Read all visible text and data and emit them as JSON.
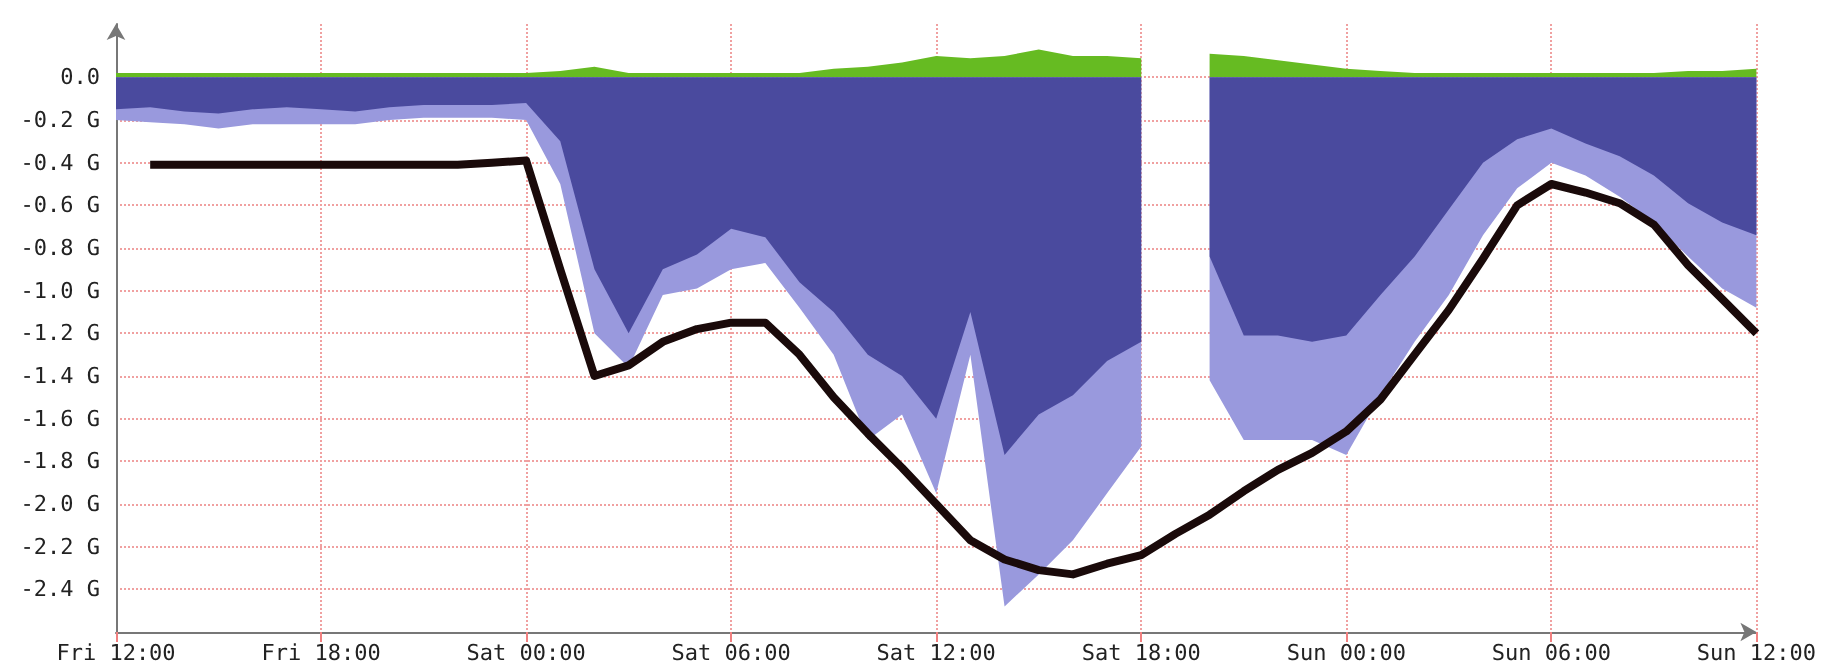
{
  "chart_data": {
    "type": "area",
    "grid": true,
    "marker": "none",
    "categories": [
      "Fri 12:00",
      null,
      null,
      null,
      null,
      null,
      "Fri 18:00",
      null,
      null,
      null,
      null,
      null,
      "Sat 00:00",
      null,
      null,
      null,
      null,
      null,
      "Sat 06:00",
      null,
      null,
      null,
      null,
      null,
      "Sat 12:00",
      null,
      null,
      null,
      null,
      null,
      "Sat 18:00",
      null,
      null,
      null,
      null,
      null,
      "Sun 00:00",
      null,
      null,
      null,
      null,
      null,
      "Sun 06:00",
      null,
      null,
      null,
      null,
      null,
      "Sun 12:00"
    ],
    "ylim": [
      -2.6,
      0.25
    ],
    "yticks": [
      {
        "value": 0,
        "label": "0.0"
      },
      {
        "value": -0.2,
        "label": "-0.2 G"
      },
      {
        "value": -0.4,
        "label": "-0.4 G"
      },
      {
        "value": -0.6,
        "label": "-0.6 G"
      },
      {
        "value": -0.8,
        "label": "-0.8 G"
      },
      {
        "value": -1,
        "label": "-1.0 G"
      },
      {
        "value": -1.2,
        "label": "-1.2 G"
      },
      {
        "value": -1.4,
        "label": "-1.4 G"
      },
      {
        "value": -1.6,
        "label": "-1.6 G"
      },
      {
        "value": -1.8,
        "label": "-1.8 G"
      },
      {
        "value": -2,
        "label": "-2.0 G"
      },
      {
        "value": -2.2,
        "label": "-2.2 G"
      },
      {
        "value": -2.4,
        "label": "-2.4 G"
      }
    ],
    "series": [
      {
        "color": "#66bb22",
        "values": [
          0.02,
          0.02,
          0.02,
          0.02,
          0.02,
          0.02,
          0.02,
          0.02,
          0.02,
          0.02,
          0.02,
          0.02,
          0.02,
          0.03,
          0.05,
          0.02,
          0.02,
          0.02,
          0.02,
          0.02,
          0.02,
          0.04,
          0.05,
          0.07,
          0.1,
          0.09,
          0.1,
          0.13,
          0.1,
          0.1,
          0.09,
          null,
          0.11,
          0.1,
          0.08,
          0.06,
          0.04,
          0.03,
          0.02,
          0.02,
          0.02,
          0.02,
          0.02,
          0.02,
          0.02,
          0.02,
          0.03,
          0.03,
          0.04
        ]
      },
      {
        "color": "#9999dd",
        "values": [
          -0.2,
          -0.21,
          -0.22,
          -0.24,
          -0.22,
          -0.22,
          -0.22,
          -0.22,
          -0.2,
          -0.19,
          -0.19,
          -0.19,
          -0.2,
          -0.5,
          -1.2,
          -1.36,
          -1.02,
          -0.99,
          -0.9,
          -0.87,
          -1.08,
          -1.3,
          -1.7,
          -1.58,
          -1.95,
          -1.3,
          -2.48,
          -2.33,
          -2.17,
          -1.95,
          -1.73,
          null,
          -1.42,
          -1.7,
          -1.7,
          -1.7,
          -1.77,
          -1.49,
          -1.24,
          -1.02,
          -0.74,
          -0.52,
          -0.4,
          -0.46,
          -0.56,
          -0.68,
          -0.84,
          -0.99,
          -1.08
        ]
      },
      {
        "color": "#4a4a9e",
        "values": [
          -0.15,
          -0.14,
          -0.16,
          -0.17,
          -0.15,
          -0.14,
          -0.15,
          -0.16,
          -0.14,
          -0.13,
          -0.13,
          -0.13,
          -0.12,
          -0.3,
          -0.9,
          -1.2,
          -0.9,
          -0.83,
          -0.71,
          -0.75,
          -0.96,
          -1.1,
          -1.3,
          -1.4,
          -1.6,
          -1.1,
          -1.77,
          -1.58,
          -1.49,
          -1.33,
          -1.24,
          null,
          -0.84,
          -1.21,
          -1.21,
          -1.24,
          -1.21,
          -1.02,
          -0.84,
          -0.62,
          -0.4,
          -0.29,
          -0.24,
          -0.31,
          -0.37,
          -0.46,
          -0.59,
          -0.68,
          -0.74
        ]
      },
      {
        "type": "line",
        "color": "#1a0a0a",
        "values": [
          null,
          -0.41,
          -0.41,
          -0.41,
          -0.41,
          -0.41,
          -0.41,
          -0.41,
          -0.41,
          -0.41,
          -0.41,
          -0.4,
          -0.39,
          -0.9,
          -1.4,
          -1.35,
          -1.24,
          -1.18,
          -1.15,
          -1.15,
          -1.3,
          -1.5,
          -1.67,
          -1.83,
          -2,
          -2.17,
          -2.26,
          -2.31,
          -2.33,
          -2.28,
          -2.24,
          -2.14,
          -2.05,
          -1.94,
          -1.84,
          -1.76,
          -1.66,
          -1.51,
          -1.3,
          -1.09,
          -0.85,
          -0.6,
          -0.5,
          -0.54,
          -0.59,
          -0.69,
          -0.88,
          -1.04,
          -1.2
        ]
      }
    ]
  }
}
